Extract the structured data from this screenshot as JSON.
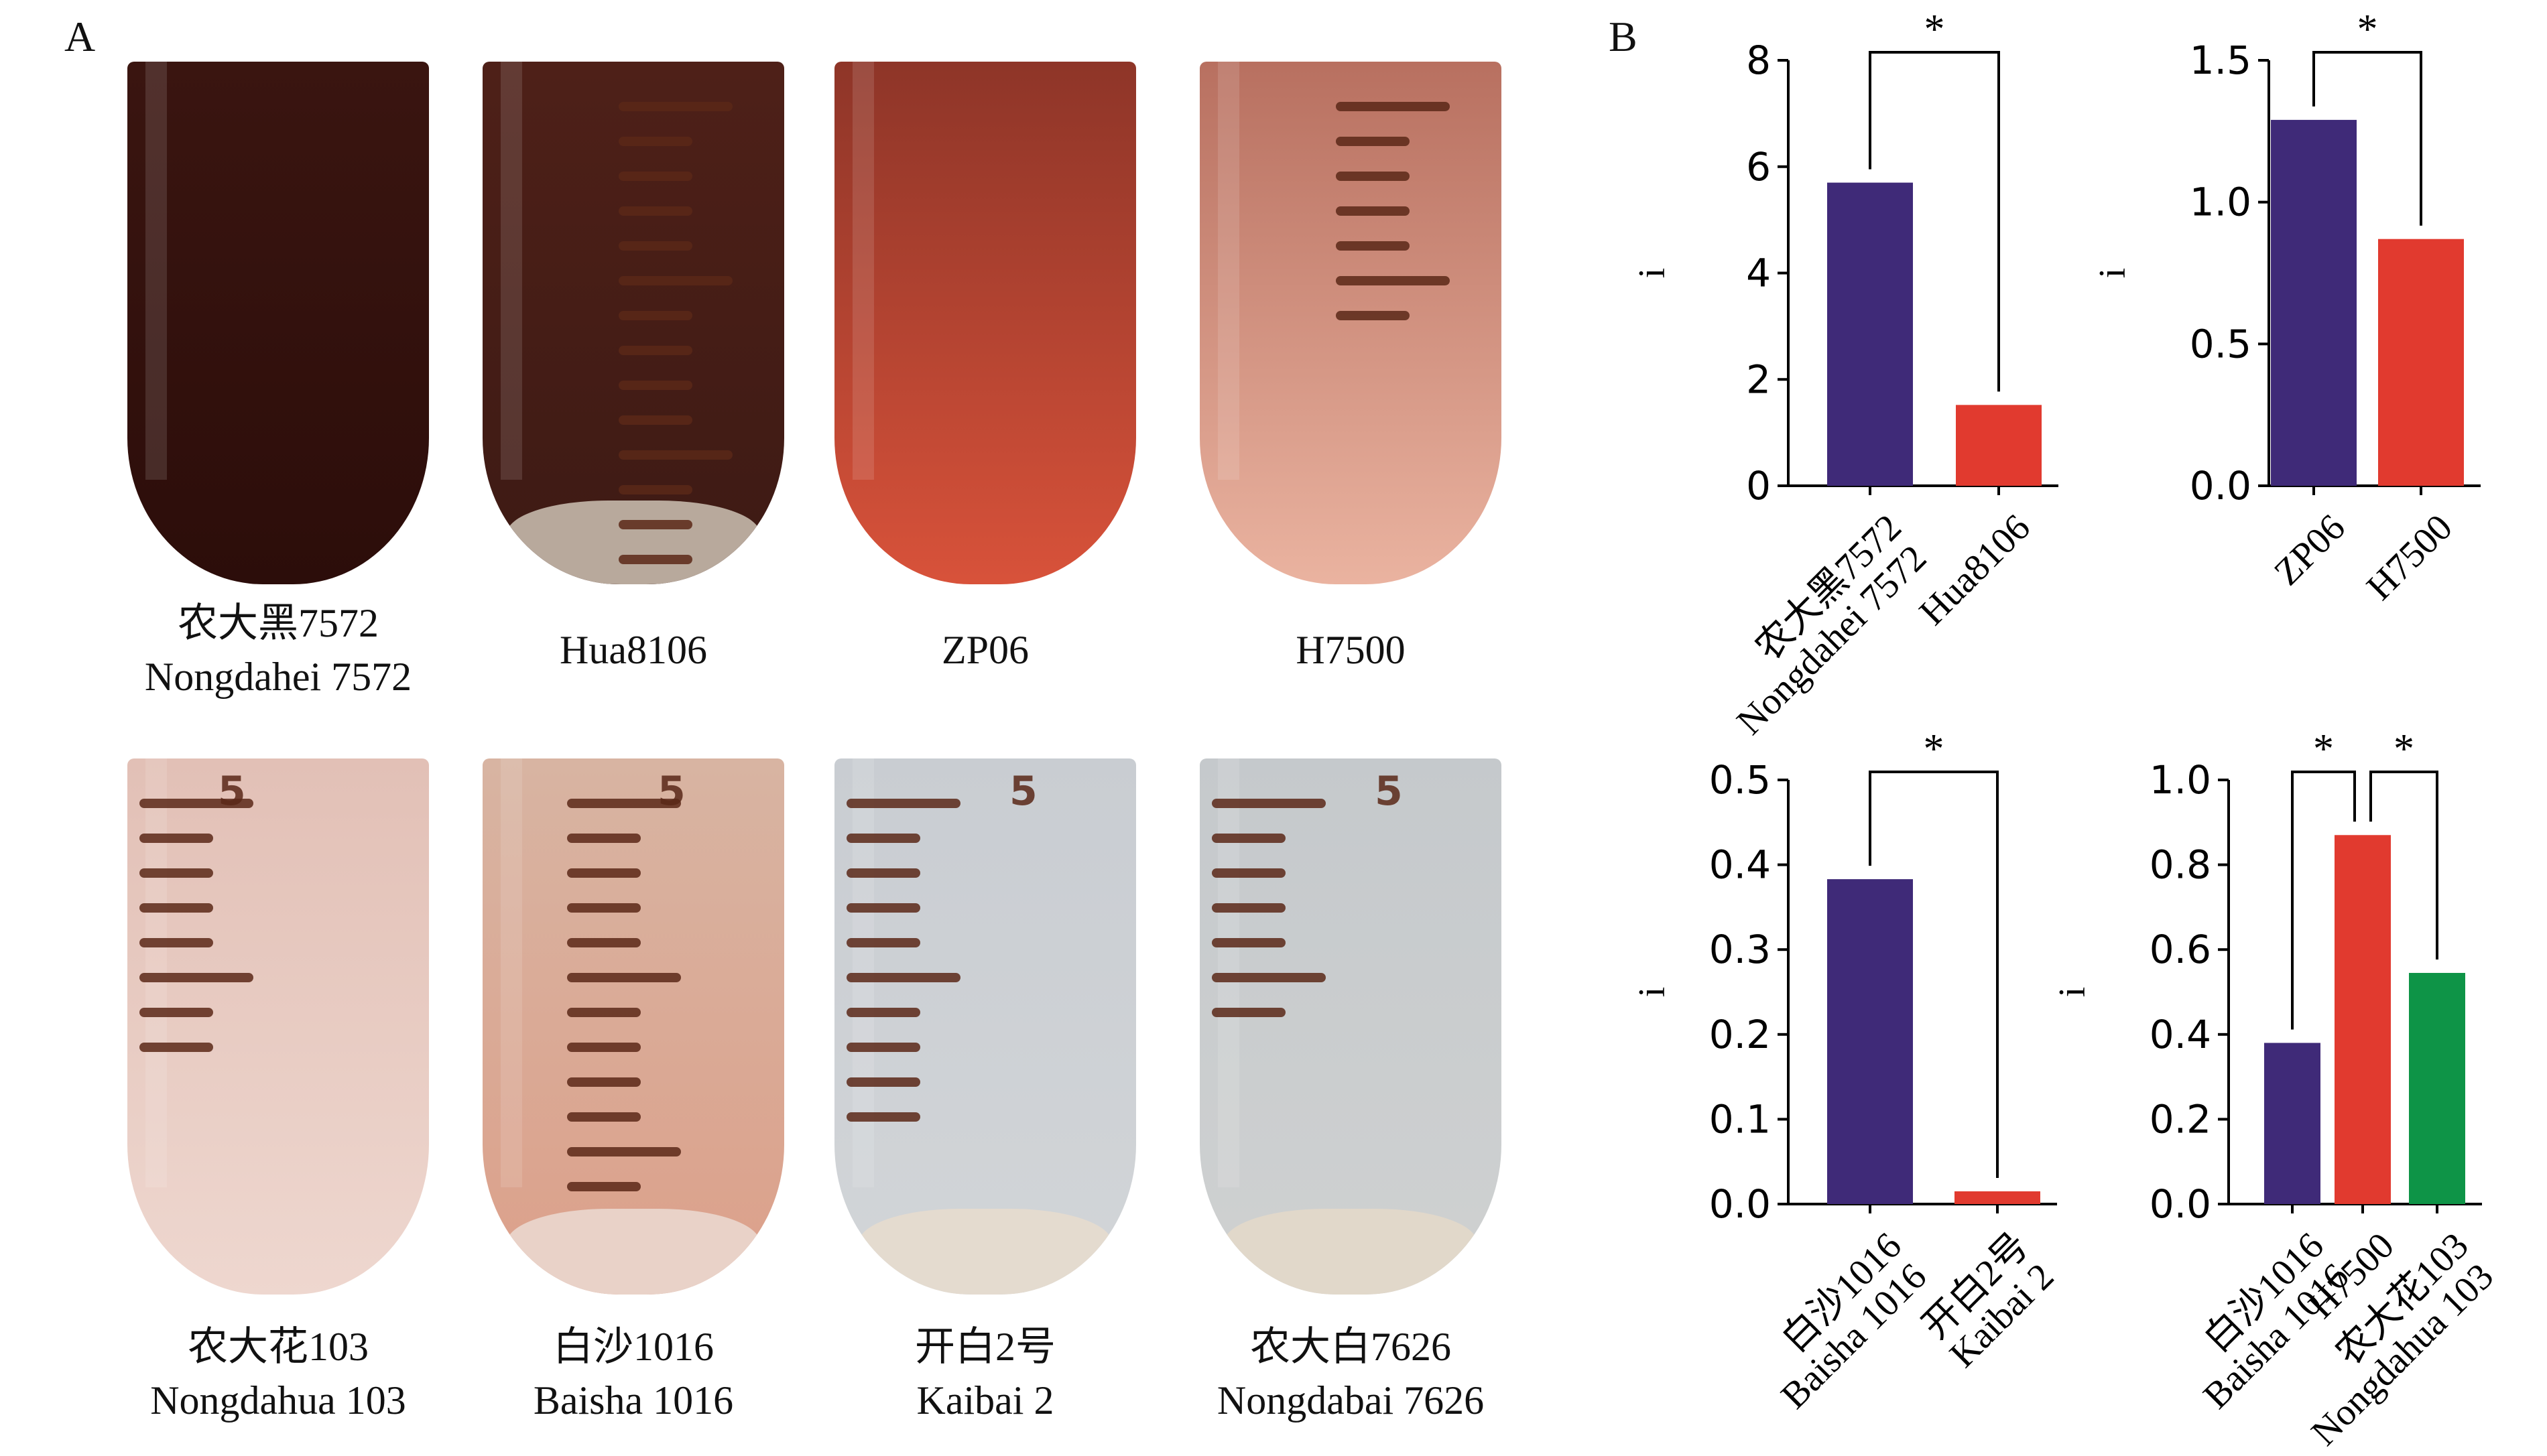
{
  "panel_a": {
    "letter": "A",
    "tubes": [
      {
        "zh": "农大黑7572",
        "en": "Nongdahei 7572",
        "top": "#3a1510",
        "bottom": "#2c0d0a",
        "sediment": "",
        "ticks": 0,
        "five": false
      },
      {
        "zh": "",
        "en": "Hua8106",
        "top": "#4e2018",
        "bottom": "#3d1a14",
        "sediment": "#b8a99c",
        "ticks": 16,
        "five": false
      },
      {
        "zh": "",
        "en": "ZP06",
        "top": "#8e3528",
        "bottom": "#d8523a",
        "sediment": "",
        "ticks": 0,
        "five": false
      },
      {
        "zh": "",
        "en": "H7500",
        "top": "#b87060",
        "bottom": "#eab3a0",
        "sediment": "",
        "ticks": 7,
        "five": false
      },
      {
        "zh": "农大花103",
        "en": "Nongdahua 103",
        "top": "#e2c0b6",
        "bottom": "#eed7cf",
        "sediment": "",
        "ticks": 8,
        "five": true
      },
      {
        "zh": "白沙1016",
        "en": "Baisha 1016",
        "top": "#d8b4a2",
        "bottom": "#dca08a",
        "sediment": "#e9d2c8",
        "ticks": 12,
        "five": true
      },
      {
        "zh": "开白2号",
        "en": "Kaibai 2",
        "top": "#c9cdd2",
        "bottom": "#d2d5d8",
        "sediment": "#e4dbcf",
        "ticks": 10,
        "five": true
      },
      {
        "zh": "农大白7626",
        "en": "Nongdabai 7626",
        "top": "#c5c9cc",
        "bottom": "#cfd1d1",
        "sediment": "#e1d8ca",
        "ticks": 7,
        "five": true
      }
    ],
    "five_glyph": "5"
  },
  "panel_b": {
    "letter": "B",
    "colors": {
      "purple": "#3f2a78",
      "red": "#e13a2f",
      "green": "#0e9447"
    }
  },
  "chart_data": [
    {
      "type": "bar",
      "categories": [
        "农大黑7572\nNongdahei 7572",
        "Hua8106"
      ],
      "values": [
        5.7,
        1.52
      ],
      "colors": [
        "#3f2a78",
        "#e13a2f"
      ],
      "ylabel": "i",
      "ylim": [
        0,
        8
      ],
      "yticks": [
        "0",
        "2",
        "4",
        "6",
        "8"
      ],
      "significance": [
        {
          "from": 0,
          "to": 1,
          "label": "*"
        }
      ]
    },
    {
      "type": "bar",
      "categories": [
        "ZP06",
        "H7500"
      ],
      "values": [
        1.29,
        0.87
      ],
      "colors": [
        "#3f2a78",
        "#e13a2f"
      ],
      "ylabel": "i",
      "ylim": [
        0,
        1.5
      ],
      "yticks": [
        "0.0",
        "0.5",
        "1.0",
        "1.5"
      ],
      "significance": [
        {
          "from": 0,
          "to": 1,
          "label": "*"
        }
      ]
    },
    {
      "type": "bar",
      "categories": [
        "白沙1016\nBaisha 1016",
        "开白2号\nKaibai 2"
      ],
      "values": [
        0.383,
        0.015
      ],
      "colors": [
        "#3f2a78",
        "#e13a2f"
      ],
      "ylabel": "i",
      "ylim": [
        0,
        0.5
      ],
      "yticks": [
        "0.0",
        "0.1",
        "0.2",
        "0.3",
        "0.4",
        "0.5"
      ],
      "significance": [
        {
          "from": 0,
          "to": 1,
          "label": "*"
        }
      ]
    },
    {
      "type": "bar",
      "categories": [
        "白沙1016\nBaisha 1016",
        "H7500",
        "农大花103\nNongdahua 103"
      ],
      "values": [
        0.38,
        0.87,
        0.545
      ],
      "colors": [
        "#3f2a78",
        "#e13a2f",
        "#0e9447"
      ],
      "ylabel": "i",
      "ylim": [
        0,
        1.0
      ],
      "yticks": [
        "0.0",
        "0.2",
        "0.4",
        "0.6",
        "0.8",
        "1.0"
      ],
      "significance": [
        {
          "from": 0,
          "to": 1,
          "label": "*"
        },
        {
          "from": 1,
          "to": 2,
          "label": "*"
        }
      ]
    }
  ]
}
